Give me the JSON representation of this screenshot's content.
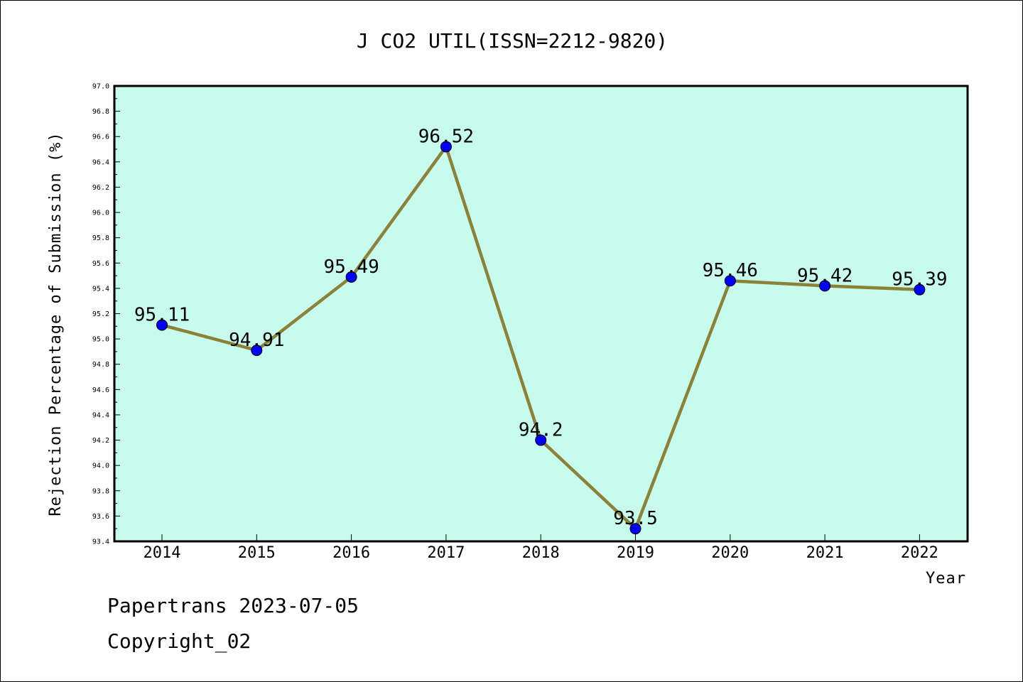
{
  "chart_data": {
    "type": "line",
    "title": "J CO2 UTIL(ISSN=2212-9820)",
    "xlabel": "Year",
    "ylabel": "Rejection Percentage of Submission (%)",
    "categories": [
      "2014",
      "2015",
      "2016",
      "2017",
      "2018",
      "2019",
      "2020",
      "2021",
      "2022"
    ],
    "values": [
      95.11,
      94.91,
      95.49,
      96.52,
      94.2,
      93.5,
      95.46,
      95.42,
      95.39
    ],
    "data_labels": [
      "95.11",
      "94.91",
      "95.49",
      "96.52",
      "94.2",
      "93.5",
      "95.46",
      "95.42",
      "95.39"
    ],
    "ylim": [
      93.4,
      97.0
    ],
    "yticks": [
      "93.4",
      "93.6",
      "93.8",
      "94.0",
      "94.2",
      "94.4",
      "94.6",
      "94.8",
      "95.0",
      "95.2",
      "95.4",
      "95.6",
      "95.8",
      "96.0",
      "96.2",
      "96.4",
      "96.6",
      "96.8",
      "97.0"
    ],
    "grid": false,
    "legend": "none",
    "colors": {
      "plot_background": "#c6fbee",
      "line": "#8b8238",
      "marker": "#0000ff"
    }
  },
  "footer": {
    "line1": "Papertrans 2023-07-05",
    "line2": "Copyright_02"
  }
}
